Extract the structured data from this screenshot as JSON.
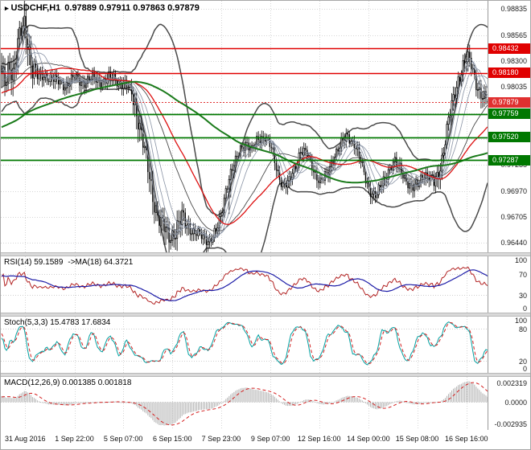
{
  "icons": {
    "chart_symbol_arrow": "▸"
  },
  "window": {
    "title_symbol": "USDCHF,H1",
    "ohlc_text": "0.97889 0.97911 0.97863 0.97879"
  },
  "main": {
    "yticks": [
      "0.98835",
      "0.98565",
      "0.98300",
      "0.98035",
      "0.97765",
      "0.97500",
      "0.97235",
      "0.96970",
      "0.96705",
      "0.96440"
    ],
    "scale": {
      "pmin": 0.9634,
      "pmax": 0.9892
    },
    "levels": [
      {
        "label": "0.98432",
        "value": 0.98432,
        "type": "resistance"
      },
      {
        "label": "0.98180",
        "value": 0.9818,
        "type": "resistance"
      },
      {
        "label": "0.97879",
        "value": 0.97879,
        "type": "current"
      },
      {
        "label": "0.97759",
        "value": 0.97759,
        "type": "support"
      },
      {
        "label": "0.97520",
        "value": 0.9752,
        "type": "support"
      },
      {
        "label": "0.97287",
        "value": 0.97287,
        "type": "support"
      }
    ]
  },
  "panels": {
    "rsi": {
      "title": "RSI(14) 59.1589",
      "title2": "->MA(18) 64.3721",
      "yticks": [
        "100",
        "70",
        "30",
        "0"
      ],
      "level_lines": [
        70,
        30
      ]
    },
    "stoch": {
      "title": "Stoch(5,3,3) 15.4783 17.6834",
      "yticks": [
        "100",
        "80",
        "20",
        "0"
      ],
      "level_lines": [
        80,
        20
      ]
    },
    "macd": {
      "title": "MACD(12,26,9) 0.001385 0.001818",
      "yticks": [
        "0.002319",
        "0.0000",
        "-0.002935"
      ]
    }
  },
  "xaxis": {
    "labels": [
      "31 Aug 2016",
      "1 Sep 22:00",
      "5 Sep 07:00",
      "6 Sep 15:00",
      "7 Sep 23:00",
      "9 Sep 07:00",
      "12 Sep 16:00",
      "14 Sep 00:00",
      "15 Sep 08:00",
      "16 Sep 16:00"
    ],
    "fractions": [
      0.05,
      0.151,
      0.251,
      0.352,
      0.452,
      0.553,
      0.653,
      0.754,
      0.854,
      0.955
    ]
  },
  "chart_data": {
    "type": "candlestick",
    "symbol": "USDCHF",
    "timeframe": "H1",
    "last_ohlc": {
      "open": 0.97889,
      "high": 0.97911,
      "low": 0.97863,
      "close": 0.97879
    },
    "candles_visible": 300,
    "price_path": [
      [
        0.0,
        0.9812
      ],
      [
        0.008,
        0.9806
      ],
      [
        0.016,
        0.983
      ],
      [
        0.024,
        0.982
      ],
      [
        0.032,
        0.9842
      ],
      [
        0.04,
        0.9858
      ],
      [
        0.048,
        0.9868
      ],
      [
        0.056,
        0.9845
      ],
      [
        0.064,
        0.9822
      ],
      [
        0.075,
        0.9812
      ],
      [
        0.09,
        0.9816
      ],
      [
        0.11,
        0.981
      ],
      [
        0.13,
        0.9806
      ],
      [
        0.15,
        0.9812
      ],
      [
        0.17,
        0.9809
      ],
      [
        0.19,
        0.9812
      ],
      [
        0.21,
        0.981
      ],
      [
        0.23,
        0.9813
      ],
      [
        0.25,
        0.9807
      ],
      [
        0.268,
        0.9798
      ],
      [
        0.283,
        0.9768
      ],
      [
        0.298,
        0.9726
      ],
      [
        0.313,
        0.9688
      ],
      [
        0.328,
        0.9662
      ],
      [
        0.343,
        0.9651
      ],
      [
        0.358,
        0.9657
      ],
      [
        0.372,
        0.9668
      ],
      [
        0.386,
        0.966
      ],
      [
        0.4,
        0.9653
      ],
      [
        0.414,
        0.9649
      ],
      [
        0.428,
        0.9647
      ],
      [
        0.442,
        0.9655
      ],
      [
        0.452,
        0.9671
      ],
      [
        0.462,
        0.9701
      ],
      [
        0.472,
        0.9716
      ],
      [
        0.482,
        0.9726
      ],
      [
        0.492,
        0.9741
      ],
      [
        0.502,
        0.9748
      ],
      [
        0.515,
        0.9737
      ],
      [
        0.528,
        0.9751
      ],
      [
        0.542,
        0.9754
      ],
      [
        0.554,
        0.9741
      ],
      [
        0.566,
        0.972
      ],
      [
        0.578,
        0.9704
      ],
      [
        0.59,
        0.9703
      ],
      [
        0.602,
        0.9719
      ],
      [
        0.615,
        0.9739
      ],
      [
        0.628,
        0.9734
      ],
      [
        0.642,
        0.9719
      ],
      [
        0.656,
        0.9706
      ],
      [
        0.67,
        0.9713
      ],
      [
        0.684,
        0.9734
      ],
      [
        0.698,
        0.9744
      ],
      [
        0.712,
        0.9754
      ],
      [
        0.726,
        0.9746
      ],
      [
        0.738,
        0.9728
      ],
      [
        0.75,
        0.9708
      ],
      [
        0.762,
        0.9695
      ],
      [
        0.772,
        0.9691
      ],
      [
        0.784,
        0.9706
      ],
      [
        0.796,
        0.9719
      ],
      [
        0.808,
        0.9726
      ],
      [
        0.82,
        0.972
      ],
      [
        0.832,
        0.971
      ],
      [
        0.844,
        0.9698
      ],
      [
        0.856,
        0.9703
      ],
      [
        0.868,
        0.9717
      ],
      [
        0.88,
        0.971
      ],
      [
        0.89,
        0.9704
      ],
      [
        0.9,
        0.9716
      ],
      [
        0.91,
        0.9741
      ],
      [
        0.92,
        0.9769
      ],
      [
        0.93,
        0.9791
      ],
      [
        0.94,
        0.9813
      ],
      [
        0.95,
        0.9826
      ],
      [
        0.958,
        0.9832
      ],
      [
        0.966,
        0.9827
      ],
      [
        0.975,
        0.9812
      ],
      [
        0.984,
        0.9799
      ],
      [
        0.992,
        0.9791
      ],
      [
        1.0,
        0.9788
      ]
    ],
    "levels": [
      0.98432,
      0.9818,
      0.97879,
      0.97759,
      0.9752,
      0.97287
    ],
    "indicators": {
      "bollinger": {
        "period": 34,
        "dev": 2
      },
      "ma_fan_periods": [
        4,
        7,
        11,
        17
      ],
      "ma_red_period": 48,
      "ma_green_period": 130,
      "rsi": {
        "period": 14,
        "ma": 18,
        "value": 59.1589,
        "ma_value": 64.3721
      },
      "stoch": {
        "k": 5,
        "d": 3,
        "slow": 3,
        "value": 15.4783,
        "signal": 17.6834
      },
      "macd": {
        "fast": 12,
        "slow": 26,
        "signal": 9,
        "value": 0.001385,
        "signal_value": 0.001818
      }
    },
    "colors": {
      "grid": "#d6d6d6",
      "candle_up": "#ffffff",
      "candle_down": "#000000",
      "wick": "#000000",
      "bollinger": "#4a4a4a",
      "ma_fan": "#8892a4",
      "ma_red": "#dd1111",
      "ma_green": "#1a7a1a",
      "resistance": "#e00000",
      "support": "#007800",
      "current": "#e03030",
      "rsi_line": "#b22222",
      "rsi_ma": "#1d1da8",
      "stoch_main": "#00a0a0",
      "stoch_signal": "#d42020",
      "macd_hist": "#b8b8b8",
      "macd_signal": "#d42020"
    }
  }
}
